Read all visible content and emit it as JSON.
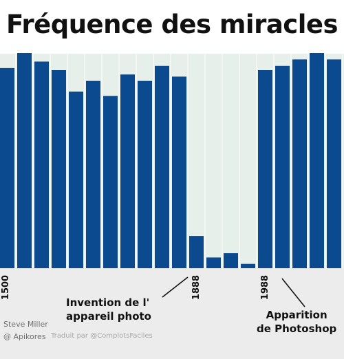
{
  "title": "Fréquence des miracles",
  "chart_data": {
    "type": "bar",
    "title": "Fréquence des miracles",
    "xlabel": "",
    "ylabel": "",
    "values": [
      93,
      100,
      96,
      92,
      82,
      87,
      80,
      90,
      87,
      94,
      89,
      15,
      5,
      7,
      2,
      92,
      94,
      97,
      100,
      97
    ],
    "x_tick_labels": [
      {
        "label": "1500",
        "bar_index": 0
      },
      {
        "label": "1888",
        "bar_index": 11
      },
      {
        "label": "1988",
        "bar_index": 15
      }
    ],
    "ylim": [
      0,
      100
    ],
    "grid": "vertical bands",
    "legend": "none",
    "colors": {
      "bar": "#0b4a8f",
      "background": "#e6efe9",
      "gridline": "#ffffff",
      "axis_band": "#ececec"
    }
  },
  "annotations": {
    "camera": [
      "Invention de l'",
      "appareil photo"
    ],
    "photoshop": [
      "Apparition",
      "de Photoshop"
    ]
  },
  "credits": {
    "author": "Steve Miller",
    "handle": "@ Apikores",
    "translation": "Traduit par @ComplotsFaciles"
  }
}
